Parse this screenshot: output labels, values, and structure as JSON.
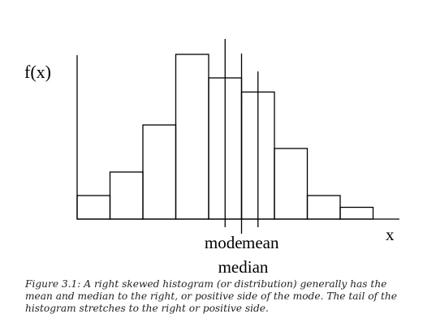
{
  "chart_data": {
    "type": "bar",
    "ylabel": "f(x)",
    "xlabel": "x",
    "bins": [
      1,
      2,
      3,
      4,
      5,
      6,
      7,
      8,
      9
    ],
    "values": [
      1,
      2,
      4,
      7,
      6,
      5.4,
      3,
      1,
      0.5
    ],
    "ylim": [
      0,
      7.5
    ],
    "xlim": [
      0,
      9.8
    ],
    "markers": [
      {
        "label": "mode",
        "x": 4.5
      },
      {
        "label": "median",
        "x": 5.0
      },
      {
        "label": "mean",
        "x": 5.5
      }
    ]
  },
  "caption": "Figure 3.1: A right skewed histogram (or distribution) generally has the mean and median to the right, or positive side of the mode. The tail of the histogram stretches to the right or positive side."
}
